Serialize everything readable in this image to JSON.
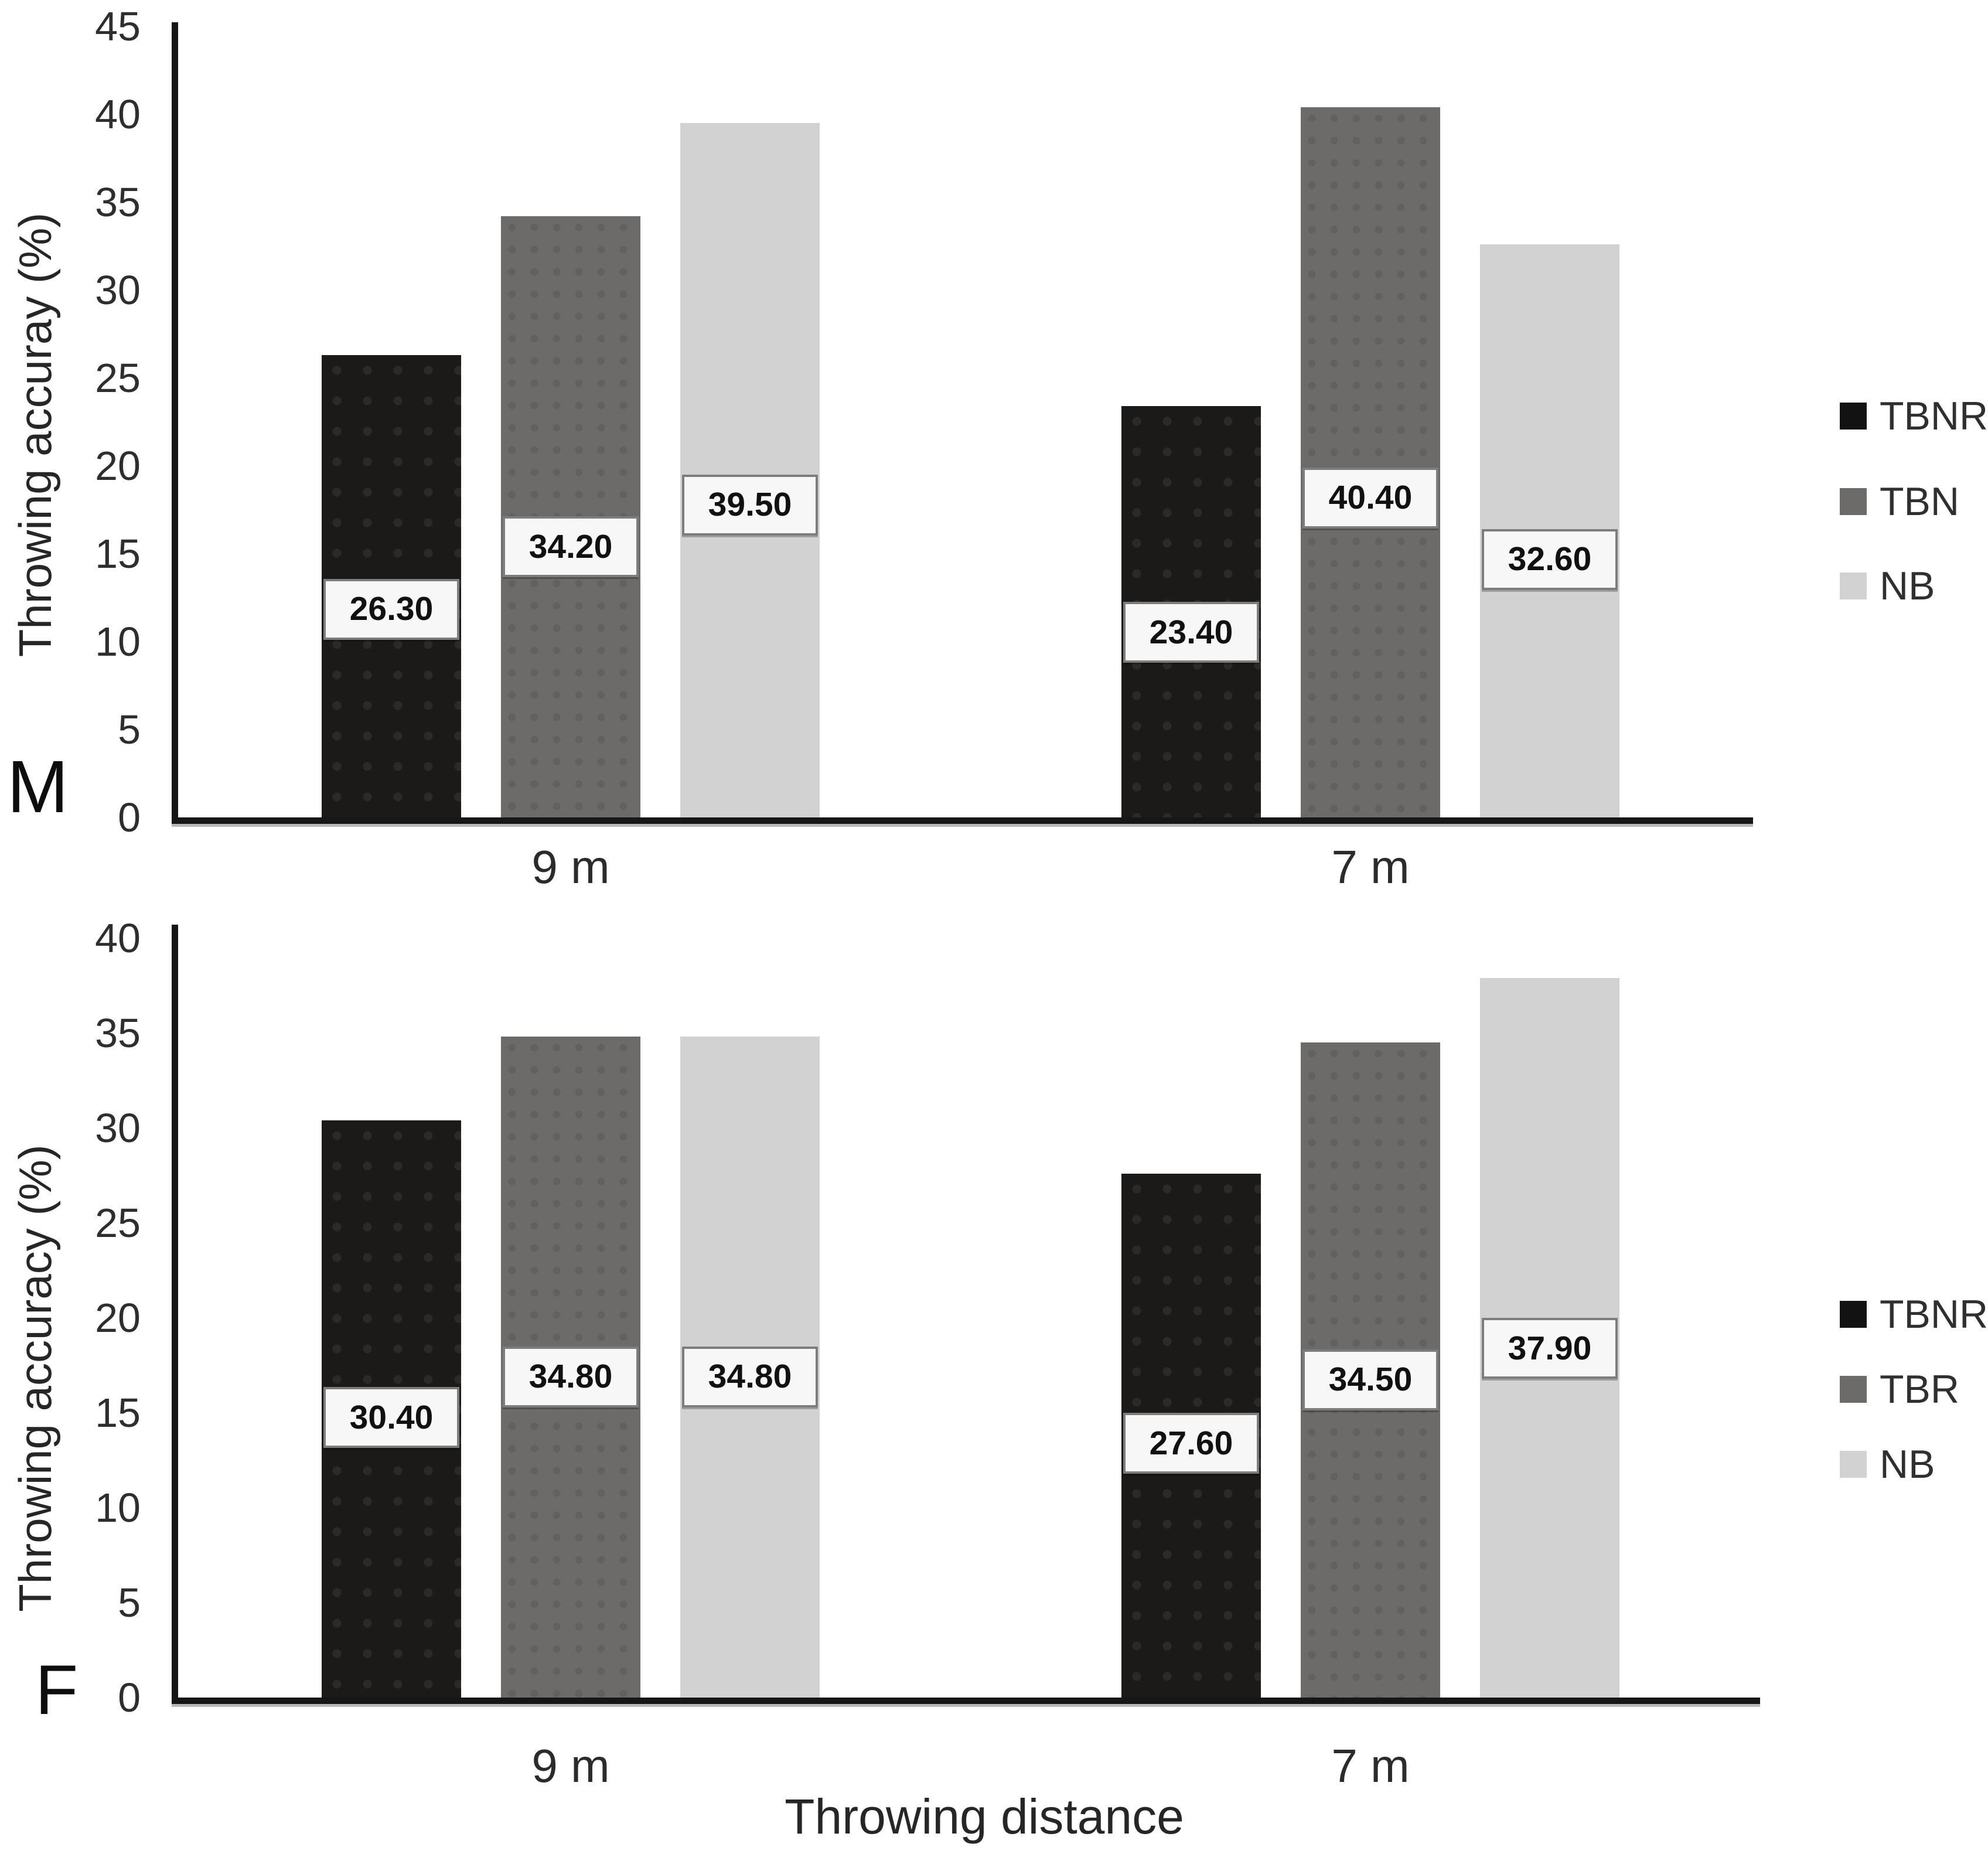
{
  "chart_data": [
    {
      "type": "bar",
      "panel_label": "M",
      "ylabel": "Throwing accuray (%)",
      "xlabel": "",
      "categories": [
        "9 m",
        "7 m"
      ],
      "series": [
        {
          "name": "TBNR",
          "color": "#1c1a19",
          "values": [
            26.3,
            23.4
          ]
        },
        {
          "name": "TBN",
          "color": "#6d6a6a",
          "values": [
            34.2,
            40.4
          ]
        },
        {
          "name": "NB",
          "color": "#d3d2d2",
          "values": [
            39.5,
            32.6
          ]
        }
      ],
      "ylim": [
        0,
        45
      ],
      "ytick_step": 5,
      "grid": false,
      "legend_position": "right",
      "value_labels": [
        [
          "26.30",
          "23.40"
        ],
        [
          "34.20",
          "40.40"
        ],
        [
          "39.50",
          "32.60"
        ]
      ]
    },
    {
      "type": "bar",
      "panel_label": "F",
      "ylabel": "Throwing accuracy (%)",
      "xlabel": "Throwing distance",
      "categories": [
        "9 m",
        "7 m"
      ],
      "series": [
        {
          "name": "TBNR",
          "color": "#1c1a19",
          "values": [
            30.4,
            27.6
          ]
        },
        {
          "name": "TBR",
          "color": "#6d6a6a",
          "values": [
            34.8,
            34.5
          ]
        },
        {
          "name": "NB",
          "color": "#d3d2d2",
          "values": [
            34.8,
            37.9
          ]
        }
      ],
      "ylim": [
        0,
        40
      ],
      "ytick_step": 5,
      "grid": false,
      "legend_position": "right",
      "value_labels": [
        [
          "30.40",
          "27.60"
        ],
        [
          "34.80",
          "34.50"
        ],
        [
          "34.80",
          "37.90"
        ]
      ]
    }
  ],
  "colors": {
    "axis": "#161616",
    "tick_text": "#2e2e2e",
    "value_box_bg": "#f7f7f7",
    "value_box_border": "#7d7d7d",
    "bar_black": "#1c1a19",
    "bar_gray": "#6d6a6a",
    "bar_light": "#d3d2d2"
  }
}
